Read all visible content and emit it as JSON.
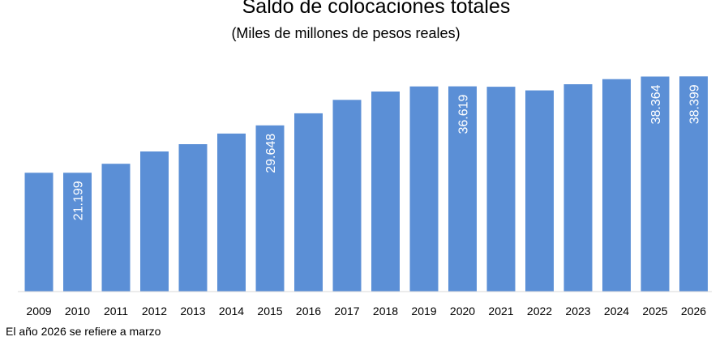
{
  "chart_data": {
    "type": "bar",
    "title": "Saldo de colocaciones totales",
    "subtitle": "(Miles de millones de pesos reales)",
    "categories": [
      "2009",
      "2010",
      "2011",
      "2012",
      "2013",
      "2014",
      "2015",
      "2016",
      "2017",
      "2018",
      "2019",
      "2020",
      "2021",
      "2022",
      "2023",
      "2024",
      "2025",
      "2026"
    ],
    "values": [
      21.2,
      21.199,
      22.8,
      25.0,
      26.3,
      28.2,
      29.648,
      31.8,
      34.2,
      35.7,
      36.6,
      36.619,
      36.55,
      35.9,
      37.0,
      37.9,
      38.364,
      38.399
    ],
    "data_labels": {
      "1": "21.199",
      "6": "29.648",
      "11": "36.619",
      "16": "38.364",
      "17": "38.399"
    },
    "ylim": [
      0,
      42
    ],
    "grid": false,
    "legend": "none",
    "bar_color": "#5B8FD6",
    "label_color": "#FFFFFF",
    "footnote": "El año 2026 se refiere a marzo"
  }
}
